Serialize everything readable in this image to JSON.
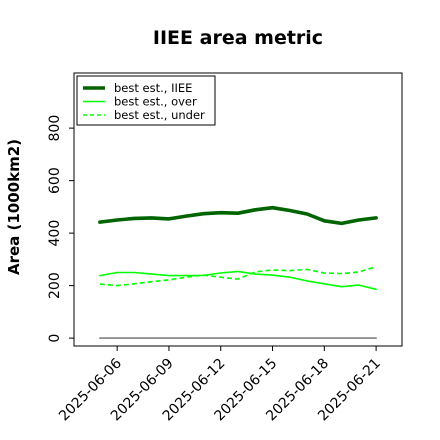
{
  "chart_data": {
    "type": "line",
    "title": "IIEE area metric",
    "xlabel": "",
    "ylabel": "Area (1000km2)",
    "ylim": [
      -30,
      1010
    ],
    "xlim": [
      "2025-06-03 12:00",
      "2025-06-22 12:00"
    ],
    "xticks": [
      "2025-06-06",
      "2025-06-09",
      "2025-06-12",
      "2025-06-15",
      "2025-06-18",
      "2025-06-21"
    ],
    "yticks": [
      0,
      200,
      400,
      600,
      800
    ],
    "grid": false,
    "legend_position": "top-left",
    "x": [
      "2025-06-05",
      "2025-06-06",
      "2025-06-07",
      "2025-06-08",
      "2025-06-09",
      "2025-06-10",
      "2025-06-11",
      "2025-06-12",
      "2025-06-13",
      "2025-06-14",
      "2025-06-15",
      "2025-06-16",
      "2025-06-17",
      "2025-06-18",
      "2025-06-19",
      "2025-06-20",
      "2025-06-21"
    ],
    "series": [
      {
        "name": "best est., IIEE",
        "color": "#006400",
        "style": "solid",
        "width": "thick",
        "values": [
          442,
          450,
          456,
          458,
          454,
          465,
          474,
          478,
          476,
          489,
          497,
          486,
          473,
          447,
          437,
          450,
          458
        ]
      },
      {
        "name": "best est., over",
        "color": "#00ff00",
        "style": "solid",
        "width": "thin",
        "values": [
          238,
          250,
          250,
          244,
          238,
          238,
          239,
          248,
          254,
          244,
          240,
          232,
          218,
          207,
          196,
          202,
          186
        ]
      },
      {
        "name": "best est., under",
        "color": "#00ff00",
        "style": "dashed",
        "width": "thin",
        "values": [
          206,
          200,
          207,
          215,
          222,
          232,
          240,
          232,
          225,
          252,
          260,
          257,
          262,
          248,
          246,
          252,
          272
        ]
      },
      {
        "name": "",
        "color": "#808080",
        "style": "solid",
        "width": "thin",
        "values": [
          0,
          0,
          0,
          0,
          0,
          0,
          0,
          0,
          0,
          0,
          0,
          0,
          0,
          0,
          0,
          0,
          0
        ]
      }
    ]
  }
}
